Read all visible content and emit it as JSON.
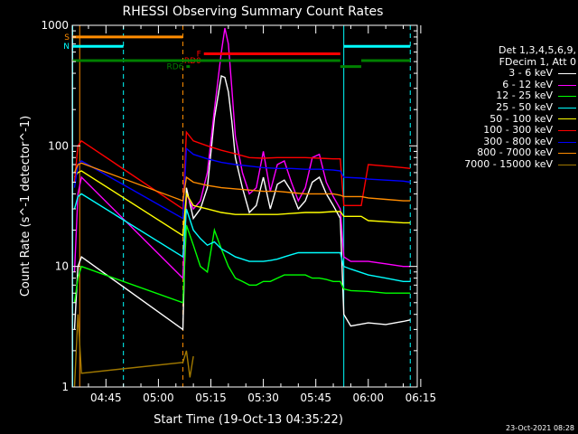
{
  "colors": {
    "background": "#000000",
    "axis": "#ffffff",
    "boundary": "#00ffff",
    "boundary_dash": "#00ffff",
    "attenuator_dash": "#ff8c00"
  },
  "chart_data": {
    "type": "line",
    "title": "RHESSI Observing Summary Count Rates",
    "xlabel": "Start Time (19-Oct-13 04:35:22)",
    "ylabel": "Count Rate (s^-1 detector^-1)",
    "y_scale": "log",
    "xlim": [
      "04:35:22",
      "06:14:00"
    ],
    "ylim": [
      1,
      1000
    ],
    "x_ticks": [
      "04:45",
      "05:00",
      "05:15",
      "05:30",
      "05:45",
      "06:00",
      "06:15"
    ],
    "y_ticks": [
      "1",
      "10",
      "100",
      "1000"
    ],
    "legend_placement": "right",
    "grid": false,
    "series": [
      {
        "name": "3 - 6 keV",
        "color": "#ffffff",
        "x": [
          "04:36",
          "04:37",
          "04:38",
          "05:07",
          "05:08",
          "05:10",
          "05:12",
          "05:14",
          "05:16",
          "05:18",
          "05:19",
          "05:20",
          "05:21",
          "05:22",
          "05:24",
          "05:26",
          "05:28",
          "05:30",
          "05:32",
          "05:34",
          "05:36",
          "05:38",
          "05:40",
          "05:42",
          "05:44",
          "05:46",
          "05:48",
          "05:50",
          "05:52",
          "05:53",
          "05:55",
          "06:00",
          "06:05",
          "06:10",
          "06:12"
        ],
        "y": [
          3,
          10,
          12,
          3,
          45,
          25,
          30,
          45,
          170,
          380,
          370,
          280,
          160,
          80,
          45,
          28,
          32,
          55,
          30,
          48,
          52,
          42,
          30,
          35,
          50,
          55,
          40,
          32,
          25,
          4,
          3.2,
          3.4,
          3.3,
          3.5,
          3.6
        ]
      },
      {
        "name": "6 - 12 keV",
        "color": "#ff00ff",
        "x": [
          "04:36",
          "04:37",
          "04:38",
          "05:07",
          "05:08",
          "05:10",
          "05:12",
          "05:14",
          "05:16",
          "05:18",
          "05:19",
          "05:20",
          "05:21",
          "05:22",
          "05:24",
          "05:26",
          "05:28",
          "05:30",
          "05:32",
          "05:34",
          "05:36",
          "05:38",
          "05:40",
          "05:42",
          "05:44",
          "05:46",
          "05:48",
          "05:50",
          "05:52",
          "05:53",
          "05:55",
          "06:00",
          "06:05",
          "06:10",
          "06:12"
        ],
        "y": [
          9,
          40,
          55,
          8,
          40,
          30,
          35,
          60,
          200,
          600,
          950,
          700,
          300,
          120,
          60,
          40,
          45,
          90,
          42,
          70,
          75,
          50,
          35,
          45,
          80,
          85,
          50,
          38,
          30,
          12,
          11,
          11,
          10.5,
          10,
          10
        ]
      },
      {
        "name": "12 - 25 keV",
        "color": "#00ff00",
        "x": [
          "04:36",
          "04:37",
          "04:38",
          "05:07",
          "05:08",
          "05:10",
          "05:12",
          "05:14",
          "05:16",
          "05:18",
          "05:20",
          "05:22",
          "05:24",
          "05:26",
          "05:28",
          "05:30",
          "05:32",
          "05:34",
          "05:36",
          "05:38",
          "05:40",
          "05:42",
          "05:44",
          "05:46",
          "05:48",
          "05:50",
          "05:52",
          "05:53",
          "05:55",
          "06:00",
          "06:05",
          "06:10",
          "06:12"
        ],
        "y": [
          5,
          8,
          10,
          5,
          22,
          15,
          10,
          9,
          20,
          14,
          10,
          8,
          7.5,
          7,
          7,
          7.5,
          7.5,
          8,
          8.5,
          8.5,
          8.5,
          8.5,
          8,
          8,
          7.8,
          7.5,
          7.5,
          6.5,
          6.3,
          6.2,
          6,
          6,
          6
        ]
      },
      {
        "name": "25 - 50 keV",
        "color": "#00ffff",
        "x": [
          "04:36",
          "04:37",
          "04:38",
          "05:07",
          "05:08",
          "05:10",
          "05:12",
          "05:14",
          "05:16",
          "05:18",
          "05:20",
          "05:22",
          "05:24",
          "05:26",
          "05:28",
          "05:30",
          "05:32",
          "05:34",
          "05:36",
          "05:38",
          "05:40",
          "05:42",
          "05:44",
          "05:46",
          "05:48",
          "05:50",
          "05:52",
          "05:53",
          "05:55",
          "06:00",
          "06:05",
          "06:10",
          "06:12"
        ],
        "y": [
          30,
          38,
          40,
          12,
          30,
          20,
          17,
          15,
          16,
          14,
          13,
          12,
          11.5,
          11,
          11,
          11,
          11.2,
          11.5,
          12,
          12.5,
          13,
          13,
          13,
          13,
          13,
          13,
          13,
          10,
          9.5,
          8.5,
          8,
          7.5,
          7.5
        ]
      },
      {
        "name": "50 - 100 keV",
        "color": "#ffff00",
        "x": [
          "04:36",
          "04:37",
          "04:38",
          "05:07",
          "05:08",
          "05:10",
          "05:14",
          "05:18",
          "05:22",
          "05:26",
          "05:30",
          "05:34",
          "05:38",
          "05:42",
          "05:46",
          "05:50",
          "05:52",
          "05:53",
          "05:58",
          "06:00",
          "06:05",
          "06:10",
          "06:12"
        ],
        "y": [
          55,
          60,
          62,
          18,
          40,
          32,
          30,
          28,
          27,
          27,
          27,
          27,
          27.5,
          28,
          28,
          28.5,
          28.5,
          26,
          26,
          24,
          23.5,
          23,
          23
        ]
      },
      {
        "name": "100 - 300 keV",
        "color": "#ff0000",
        "x": [
          "04:36",
          "04:37",
          "04:38",
          "05:07",
          "05:08",
          "05:10",
          "05:14",
          "05:18",
          "05:22",
          "05:26",
          "05:30",
          "05:34",
          "05:38",
          "05:42",
          "05:46",
          "05:50",
          "05:52",
          "05:53",
          "05:58",
          "06:00",
          "06:05",
          "06:10",
          "06:12"
        ],
        "y": [
          50,
          100,
          110,
          30,
          130,
          110,
          100,
          92,
          86,
          80,
          79,
          80,
          80,
          80,
          79,
          78,
          78,
          32,
          32,
          70,
          68,
          66,
          65
        ]
      },
      {
        "name": "300 - 800 keV",
        "color": "#0000ff",
        "x": [
          "04:36",
          "04:37",
          "04:38",
          "05:07",
          "05:08",
          "05:10",
          "05:14",
          "05:18",
          "05:22",
          "05:26",
          "05:30",
          "05:34",
          "05:38",
          "05:42",
          "05:46",
          "05:50",
          "05:52",
          "05:53",
          "05:58",
          "06:00",
          "06:05",
          "06:10",
          "06:12"
        ],
        "y": [
          45,
          70,
          75,
          25,
          95,
          85,
          78,
          73,
          70,
          68,
          66,
          65,
          65,
          64,
          64,
          63,
          62,
          55,
          54,
          53,
          52,
          51,
          50
        ]
      },
      {
        "name": "800 - 7000 keV",
        "color": "#ff8c00",
        "x": [
          "04:36",
          "04:37",
          "04:38",
          "05:07",
          "05:08",
          "05:10",
          "05:14",
          "05:18",
          "05:22",
          "05:26",
          "05:30",
          "05:34",
          "05:38",
          "05:42",
          "05:46",
          "05:50",
          "05:52",
          "05:53",
          "05:58",
          "06:00",
          "06:05",
          "06:10",
          "06:12"
        ],
        "y": [
          60,
          70,
          72,
          35,
          55,
          50,
          47,
          45,
          44,
          43,
          42,
          42,
          41,
          40,
          40,
          40,
          39,
          38,
          38,
          37,
          36,
          35,
          35
        ]
      },
      {
        "name": "7000 - 15000 keV",
        "color": "#a07800",
        "x": [
          "04:36",
          "04:37",
          "04:38",
          "05:07",
          "05:08",
          "05:09",
          "05:10"
        ],
        "y": [
          1,
          4,
          1.3,
          1.6,
          2,
          1.2,
          1.8
        ]
      }
    ]
  },
  "annotations": {
    "bars": [
      {
        "label": "S",
        "color": "#ff8c00",
        "x0": "04:35:22",
        "x1": "05:07",
        "y": 800
      },
      {
        "label": "N",
        "color": "#00ffff",
        "x0": "04:35:22",
        "x1": "04:50",
        "y": 670
      },
      {
        "label": "",
        "color": "#00ffff",
        "x0": "05:53",
        "x1": "06:12",
        "y": 670
      },
      {
        "label": "F",
        "color": "#ff0000",
        "x0": "05:13",
        "x1": "05:52",
        "y": 580
      },
      {
        "label": "RD0",
        "color": "#ff0000",
        "x0": "05:13",
        "x1": "05:13",
        "y": 510
      },
      {
        "label": "",
        "color": "#008000",
        "x0": "04:35:22",
        "x1": "05:52",
        "y": 510
      },
      {
        "label": "",
        "color": "#008000",
        "x0": "05:58",
        "x1": "06:12",
        "y": 510
      },
      {
        "label": "RD6",
        "color": "#008000",
        "x0": "05:08",
        "x1": "05:09",
        "y": 455
      },
      {
        "label": "",
        "color": "#008000",
        "x0": "05:52",
        "x1": "05:58",
        "y": 455
      }
    ],
    "vlines": [
      {
        "x": "04:35:30",
        "style": "solid",
        "color": "#00ffff"
      },
      {
        "x": "04:37:30",
        "style": "solid",
        "color": "#ff8c00"
      },
      {
        "x": "04:50:00",
        "style": "dash",
        "color": "#00ffff"
      },
      {
        "x": "05:07:00",
        "style": "dash",
        "color": "#ff8c00"
      },
      {
        "x": "05:53:00",
        "style": "solid",
        "color": "#00ffff"
      },
      {
        "x": "06:12:00",
        "style": "dash",
        "color": "#00ffff"
      }
    ]
  },
  "legend": {
    "header_line1": "Det 1,3,4,5,6,9,",
    "header_line2": "FDecim 1, Att 0"
  },
  "footer": {
    "timestamp": "23-Oct-2021 08:28"
  }
}
